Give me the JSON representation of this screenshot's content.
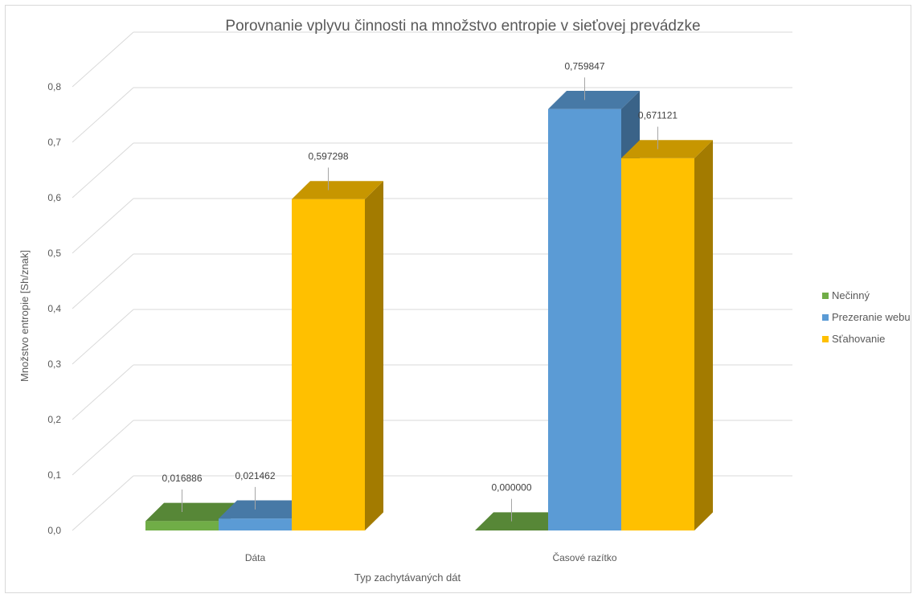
{
  "chart_data": {
    "type": "bar",
    "title": "Porovnanie vplyvu činnosti na množstvo entropie v sieťovej prevádzke",
    "xlabel": "Typ zachytávaných dát",
    "ylabel": "Množstvo entropie [Sh/znak]",
    "categories": [
      "Dáta",
      "Časové razítko"
    ],
    "ylim": [
      0,
      0.8
    ],
    "yticks": [
      "0,0",
      "0,1",
      "0,2",
      "0,3",
      "0,4",
      "0,5",
      "0,6",
      "0,7",
      "0,8"
    ],
    "grid": true,
    "legend_position": "right",
    "series": [
      {
        "name": "Nečinný",
        "values": [
          0.016886,
          0.0
        ],
        "labels": [
          "0,016886",
          "0,000000"
        ],
        "color": "#70ad47"
      },
      {
        "name": "Prezeranie webu",
        "values": [
          0.021462,
          0.759847
        ],
        "labels": [
          "0,021462",
          "0,759847"
        ],
        "color": "#5b9bd5"
      },
      {
        "name": "Sťahovanie",
        "values": [
          0.597298,
          0.671121
        ],
        "labels": [
          "0,597298",
          "0,671121"
        ],
        "color": "#ffc000"
      }
    ]
  }
}
